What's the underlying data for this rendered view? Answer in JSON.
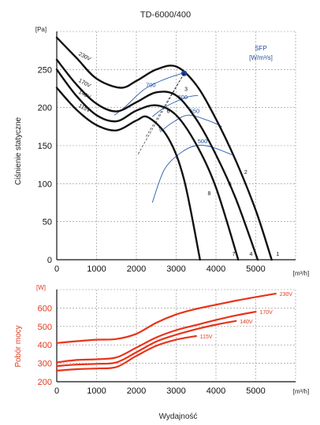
{
  "chart_data": [
    {
      "type": "line",
      "title": "TD-6000/400",
      "ylabel": "Ciśnienie statyczne",
      "y_unit": "[Pa]",
      "x_unit": "[m³/h]",
      "xlim": [
        0,
        6000
      ],
      "ylim": [
        0,
        300
      ],
      "xticks": [
        0,
        1000,
        2000,
        3000,
        4000,
        5000
      ],
      "yticks": [
        0,
        50,
        100,
        150,
        200,
        250
      ],
      "grid": true,
      "sfp_title": "SFP",
      "sfp_unit": "[W/m³/s]",
      "series": [
        {
          "name": "230V",
          "x": [
            0,
            500,
            1000,
            1600,
            2000,
            2500,
            3000,
            3500,
            4000,
            4500,
            5000,
            5400
          ],
          "y": [
            292,
            265,
            238,
            226,
            235,
            250,
            254,
            230,
            185,
            130,
            65,
            0
          ]
        },
        {
          "name": "170V",
          "x": [
            0,
            500,
            1000,
            1500,
            2000,
            2500,
            3000,
            3500,
            4000,
            4500,
            5050
          ],
          "y": [
            263,
            230,
            205,
            195,
            207,
            220,
            216,
            185,
            138,
            80,
            0
          ]
        },
        {
          "name": "140V",
          "x": [
            0,
            500,
            1000,
            1500,
            2000,
            2500,
            3000,
            3500,
            4000,
            4560
          ],
          "y": [
            250,
            215,
            190,
            182,
            196,
            203,
            190,
            152,
            95,
            0
          ]
        },
        {
          "name": "115V",
          "x": [
            0,
            500,
            1000,
            1500,
            2000,
            2300,
            2800,
            3200,
            3600
          ],
          "y": [
            226,
            197,
            177,
            170,
            183,
            187,
            160,
            105,
            0
          ]
        }
      ],
      "point_labels": [
        {
          "text": "1",
          "x": 5550,
          "y": 5
        },
        {
          "text": "2",
          "x": 4750,
          "y": 113
        },
        {
          "text": "3",
          "x": 3250,
          "y": 222
        },
        {
          "text": "4",
          "x": 4880,
          "y": 5
        },
        {
          "text": "5",
          "x": 4350,
          "y": 97
        },
        {
          "text": "6",
          "x": 2800,
          "y": 193
        },
        {
          "text": "7",
          "x": 4450,
          "y": 5
        },
        {
          "text": "8",
          "x": 3830,
          "y": 85
        },
        {
          "text": "9",
          "x": 2600,
          "y": 170
        }
      ],
      "sfp_curves": [
        {
          "name": "700",
          "x": [
            1450,
            1700,
            2200,
            2700,
            3150
          ],
          "y": [
            190,
            200,
            224,
            237,
            245
          ]
        },
        {
          "name": "600",
          "x": [
            2400,
            2700,
            3000,
            3300,
            3550
          ],
          "y": [
            188,
            200,
            208,
            214,
            216
          ]
        },
        {
          "name": "550",
          "x": [
            2600,
            2900,
            3300,
            3800,
            4150
          ],
          "y": [
            168,
            180,
            190,
            183,
            175
          ]
        },
        {
          "name": "500",
          "x": [
            2400,
            2700,
            3100,
            3500,
            3900,
            4400
          ],
          "y": [
            75,
            118,
            140,
            150,
            148,
            138
          ]
        }
      ],
      "operating_point": {
        "x": 3200,
        "y": 245
      }
    },
    {
      "type": "line",
      "ylabel": "Pobór mocy",
      "y_unit": "[W]",
      "x_unit": "[m³/h]",
      "xlabel": "Wydajność",
      "xlim": [
        0,
        6000
      ],
      "ylim": [
        200,
        700
      ],
      "xticks": [
        0,
        1000,
        2000,
        3000,
        4000,
        5000
      ],
      "yticks": [
        200,
        300,
        400,
        500,
        600
      ],
      "grid": true,
      "series": [
        {
          "name": "230V",
          "x": [
            0,
            500,
            1000,
            1500,
            2000,
            2500,
            3000,
            3500,
            4000,
            4500,
            5000,
            5500
          ],
          "y": [
            410,
            420,
            428,
            432,
            460,
            520,
            565,
            595,
            618,
            640,
            660,
            678
          ]
        },
        {
          "name": "170V",
          "x": [
            0,
            500,
            1000,
            1500,
            2000,
            2500,
            3000,
            3500,
            4000,
            4500,
            5000
          ],
          "y": [
            305,
            318,
            322,
            332,
            385,
            440,
            480,
            508,
            535,
            560,
            580
          ]
        },
        {
          "name": "140V",
          "x": [
            0,
            500,
            1000,
            1500,
            2000,
            2500,
            3000,
            3500,
            4000,
            4500
          ],
          "y": [
            285,
            293,
            297,
            305,
            360,
            418,
            455,
            485,
            510,
            530
          ]
        },
        {
          "name": "115V",
          "x": [
            0,
            500,
            1000,
            1500,
            2000,
            2500,
            3000,
            3500
          ],
          "y": [
            260,
            268,
            272,
            280,
            340,
            395,
            428,
            448
          ]
        }
      ]
    }
  ]
}
